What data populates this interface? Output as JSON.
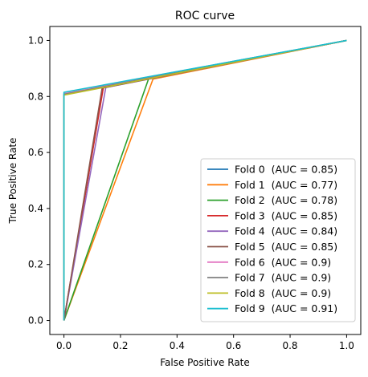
{
  "chart_data": {
    "type": "line",
    "title": "ROC curve",
    "xlabel": "False Positive Rate",
    "ylabel": "True Positive Rate",
    "xlim": [
      -0.05,
      1.05
    ],
    "ylim": [
      -0.05,
      1.05
    ],
    "xticks": [
      "0.0",
      "0.2",
      "0.4",
      "0.6",
      "0.8",
      "1.0"
    ],
    "yticks": [
      "0.0",
      "0.2",
      "0.4",
      "0.6",
      "0.8",
      "1.0"
    ],
    "grid": false,
    "legend_position": "lower-right",
    "series": [
      {
        "name": "Fold 0  (AUC = 0.85)",
        "color": "#1f77b4",
        "x": [
          0,
          0.14,
          1
        ],
        "y": [
          0,
          0.84,
          1
        ]
      },
      {
        "name": "Fold 1  (AUC = 0.77)",
        "color": "#ff7f0e",
        "x": [
          0,
          0.315,
          1
        ],
        "y": [
          0,
          0.862,
          1
        ]
      },
      {
        "name": "Fold 2  (AUC = 0.78)",
        "color": "#2ca02c",
        "x": [
          0,
          0.3,
          1
        ],
        "y": [
          0,
          0.865,
          1
        ]
      },
      {
        "name": "Fold 3  (AUC = 0.85)",
        "color": "#d62728",
        "x": [
          0,
          0.14,
          1
        ],
        "y": [
          0,
          0.835,
          1
        ]
      },
      {
        "name": "Fold 4  (AUC = 0.84)",
        "color": "#9467bd",
        "x": [
          0,
          0.148,
          1
        ],
        "y": [
          0,
          0.832,
          1
        ]
      },
      {
        "name": "Fold 5  (AUC = 0.85)",
        "color": "#8c564b",
        "x": [
          0,
          0.135,
          1
        ],
        "y": [
          0,
          0.83,
          1
        ]
      },
      {
        "name": "Fold 6  (AUC = 0.9)",
        "color": "#e377c2",
        "x": [
          0,
          0.0,
          1
        ],
        "y": [
          0,
          0.81,
          1
        ]
      },
      {
        "name": "Fold 7  (AUC = 0.9)",
        "color": "#7f7f7f",
        "x": [
          0,
          0.0,
          1
        ],
        "y": [
          0,
          0.808,
          1
        ]
      },
      {
        "name": "Fold 8  (AUC = 0.9)",
        "color": "#bcbd22",
        "x": [
          0,
          0.0,
          1
        ],
        "y": [
          0,
          0.805,
          1
        ]
      },
      {
        "name": "Fold 9  (AUC = 0.91)",
        "color": "#17becf",
        "x": [
          0,
          0.0,
          1
        ],
        "y": [
          0,
          0.815,
          1
        ]
      }
    ]
  }
}
